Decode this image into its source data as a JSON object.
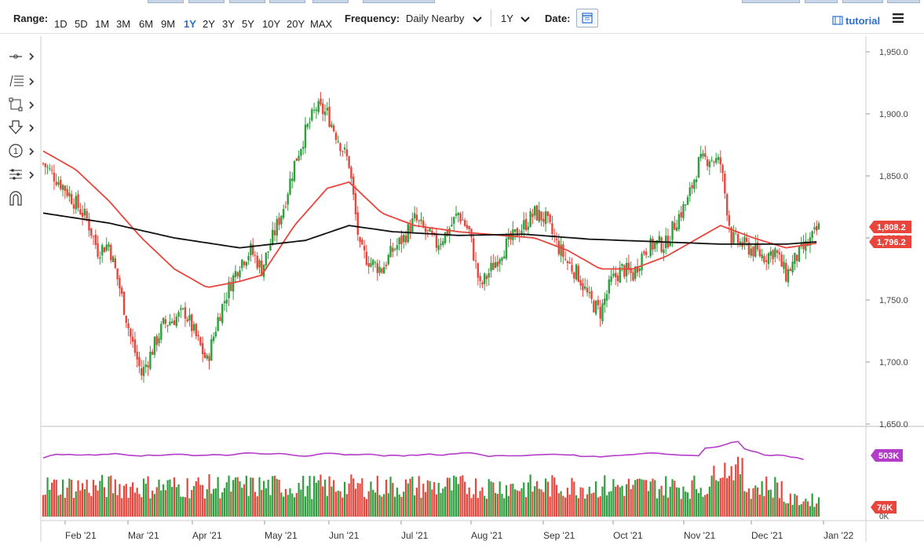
{
  "toolbar": {
    "range_label": "Range:",
    "ranges": [
      "1D",
      "5D",
      "1M",
      "3M",
      "6M",
      "9M",
      "1Y",
      "2Y",
      "3Y",
      "5Y",
      "10Y",
      "20Y",
      "MAX"
    ],
    "active_range": "1Y",
    "frequency_label": "Frequency:",
    "frequency_value": "Daily Nearby",
    "period_value": "1Y",
    "date_label": "Date:",
    "tutorial_label": "tutorial"
  },
  "sidebar_tools": [
    "line-tool-icon",
    "fibonacci-tool-icon",
    "rectangle-tool-icon",
    "arrow-down-tool-icon",
    "number-marker-icon",
    "measure-tool-icon",
    "magnet-icon"
  ],
  "colors": {
    "up": "#2e9e3e",
    "down": "#e8453c",
    "ma_slow": "#111111",
    "ma_fast": "#e8453c",
    "vol_ma": "#b43cc8",
    "accent": "#2a6fd1"
  },
  "chart_data": {
    "type": "candlestick",
    "x_labels": [
      "Feb '21",
      "Mar '21",
      "Apr '21",
      "May '21",
      "Jun '21",
      "Jul '21",
      "Aug '21",
      "Sep '21",
      "Oct '21",
      "Nov '21",
      "Dec '21",
      "Jan '22"
    ],
    "y_ticks": [
      "1,950.0",
      "1,900.0",
      "1,850.0",
      "1,800.0",
      "1,750.0",
      "1,700.0",
      "1,650.0"
    ],
    "ylim": [
      1650,
      1950
    ],
    "price_path": [
      [
        0,
        1860
      ],
      [
        10,
        1840
      ],
      [
        20,
        1815
      ],
      [
        25,
        1790
      ],
      [
        30,
        1795
      ],
      [
        35,
        1760
      ],
      [
        40,
        1720
      ],
      [
        45,
        1690
      ],
      [
        50,
        1710
      ],
      [
        55,
        1730
      ],
      [
        60,
        1735
      ],
      [
        65,
        1740
      ],
      [
        70,
        1720
      ],
      [
        75,
        1700
      ],
      [
        80,
        1735
      ],
      [
        85,
        1760
      ],
      [
        90,
        1780
      ],
      [
        95,
        1790
      ],
      [
        100,
        1775
      ],
      [
        105,
        1800
      ],
      [
        110,
        1825
      ],
      [
        115,
        1860
      ],
      [
        120,
        1885
      ],
      [
        125,
        1905
      ],
      [
        130,
        1900
      ],
      [
        135,
        1880
      ],
      [
        140,
        1860
      ],
      [
        145,
        1790
      ],
      [
        150,
        1780
      ],
      [
        155,
        1775
      ],
      [
        160,
        1790
      ],
      [
        165,
        1800
      ],
      [
        170,
        1815
      ],
      [
        175,
        1805
      ],
      [
        180,
        1795
      ],
      [
        185,
        1805
      ],
      [
        190,
        1820
      ],
      [
        195,
        1805
      ],
      [
        200,
        1760
      ],
      [
        205,
        1775
      ],
      [
        210,
        1790
      ],
      [
        215,
        1800
      ],
      [
        220,
        1810
      ],
      [
        225,
        1820
      ],
      [
        230,
        1815
      ],
      [
        235,
        1795
      ],
      [
        240,
        1780
      ],
      [
        245,
        1770
      ],
      [
        250,
        1750
      ],
      [
        255,
        1740
      ],
      [
        260,
        1765
      ],
      [
        265,
        1775
      ],
      [
        270,
        1770
      ],
      [
        275,
        1790
      ],
      [
        280,
        1795
      ],
      [
        285,
        1795
      ],
      [
        290,
        1815
      ],
      [
        295,
        1830
      ],
      [
        300,
        1860
      ],
      [
        305,
        1865
      ],
      [
        310,
        1860
      ],
      [
        315,
        1800
      ],
      [
        320,
        1795
      ],
      [
        325,
        1790
      ],
      [
        330,
        1785
      ],
      [
        335,
        1790
      ],
      [
        340,
        1770
      ],
      [
        345,
        1785
      ],
      [
        350,
        1795
      ],
      [
        355,
        1808
      ]
    ],
    "ma_slow": [
      [
        0,
        1820
      ],
      [
        30,
        1812
      ],
      [
        60,
        1800
      ],
      [
        90,
        1792
      ],
      [
        120,
        1798
      ],
      [
        140,
        1810
      ],
      [
        160,
        1805
      ],
      [
        190,
        1802
      ],
      [
        220,
        1803
      ],
      [
        250,
        1799
      ],
      [
        280,
        1797
      ],
      [
        310,
        1795
      ],
      [
        340,
        1795
      ],
      [
        355,
        1797
      ]
    ],
    "ma_fast": [
      [
        0,
        1870
      ],
      [
        15,
        1855
      ],
      [
        30,
        1830
      ],
      [
        45,
        1800
      ],
      [
        60,
        1775
      ],
      [
        75,
        1760
      ],
      [
        90,
        1765
      ],
      [
        100,
        1770
      ],
      [
        115,
        1810
      ],
      [
        130,
        1840
      ],
      [
        140,
        1845
      ],
      [
        155,
        1820
      ],
      [
        170,
        1810
      ],
      [
        190,
        1805
      ],
      [
        210,
        1802
      ],
      [
        225,
        1800
      ],
      [
        240,
        1790
      ],
      [
        255,
        1775
      ],
      [
        270,
        1775
      ],
      [
        285,
        1785
      ],
      [
        300,
        1800
      ],
      [
        310,
        1810
      ],
      [
        325,
        1800
      ],
      [
        340,
        1792
      ],
      [
        355,
        1796
      ]
    ],
    "last_price": "1,808.2",
    "ma_value": "1,796.2",
    "volume": {
      "y_ticks": [
        "0K"
      ],
      "vol_ma_label": "503K",
      "last_volume_label": "76K"
    }
  }
}
